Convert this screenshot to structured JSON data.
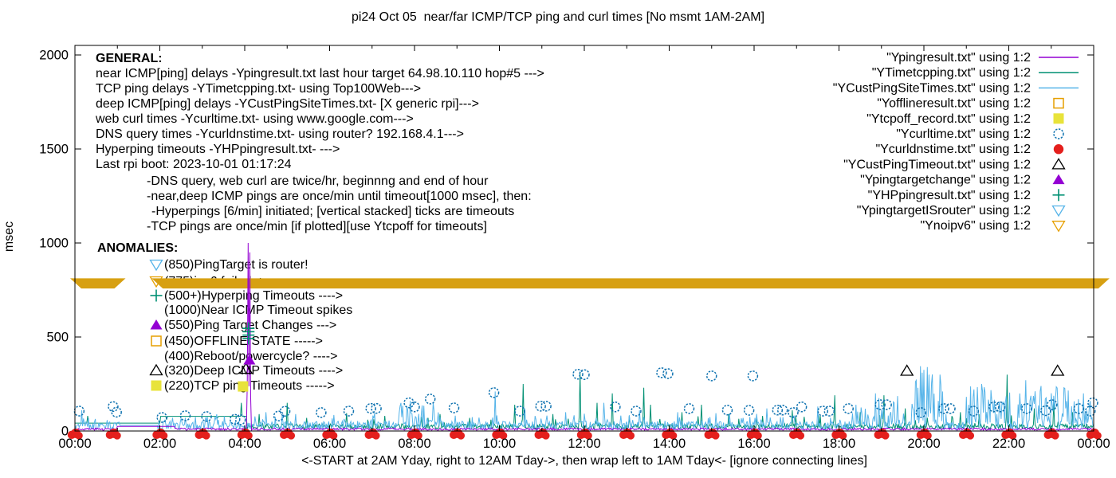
{
  "title": "pi24 Oct 05  near/far ICMP/TCP ping and curl times [No msmt 1AM-2AM]",
  "ylabel": "msec",
  "xlabel": "<-START at 2AM Yday, right to 12AM Tday->, then wrap left to 1AM Tday<- [ignore connecting lines]",
  "general": {
    "heading": "GENERAL:",
    "lines": [
      "near ICMP[ping] delays -Ypingresult.txt last hour target 64.98.10.110 hop#5 --->",
      "TCP ping delays -YTimetcpping.txt- using Top100Web--->",
      "deep ICMP[ping] delays -YCustPingSiteTimes.txt- [X generic rpi]--->",
      "web curl times -Ycurltime.txt- using www.google.com--->",
      "DNS query times -Ycurldnstime.txt- using router? 192.168.4.1--->",
      "Hyperping timeouts -YHPpingresult.txt- --->",
      "Last rpi boot: 2023-10-01 01:17:24"
    ],
    "notes": [
      "-DNS query, web curl are twice/hr, beginnng and end of hour",
      "-near,deep ICMP pings are once/min until timeout[1000 msec], then:",
      "-Hyperpings [6/min] initiated; [vertical stacked] ticks are timeouts",
      "-TCP pings are once/min [if plotted][use Ytcpoff for timeouts]"
    ]
  },
  "anomalies": {
    "heading": "ANOMALIES:",
    "items": [
      {
        "marker": "triangle-down-open",
        "color": "#56b4e9",
        "text": "(850)PingTarget is router!"
      },
      {
        "marker": "triangle-down-open",
        "color": "#e69f00",
        "text": "(775)ipv6 failed ->"
      },
      {
        "marker": "plus",
        "color": "#009073",
        "text": "(500+)Hyperping Timeouts ---->"
      },
      {
        "marker": "none",
        "color": "",
        "text": "(1000)Near ICMP Timeout spikes"
      },
      {
        "marker": "triangle-up-filled",
        "color": "#9400d3",
        "text": "(550)Ping Target Changes --->"
      },
      {
        "marker": "square-open",
        "color": "#e69f00",
        "text": "(450)OFFLINE STATE ----->"
      },
      {
        "marker": "none",
        "color": "",
        "text": "(400)Reboot/powercycle? ---->"
      },
      {
        "marker": "triangle-up-open",
        "color": "#000000",
        "text": "(320)Deep ICMP Timeouts ---->"
      },
      {
        "marker": "square-filled",
        "color": "#e8e33a",
        "text": "(220)TCP ping Timeouts ----->"
      }
    ]
  },
  "legend": {
    "entries": [
      {
        "label": "\"Ypingresult.txt\" using 1:2",
        "marker": "line",
        "color": "#9400d3"
      },
      {
        "label": "\"YTimetcpping.txt\" using 1:2",
        "marker": "line",
        "color": "#009073"
      },
      {
        "label": "\"YCustPingSiteTimes.txt\" using 1:2",
        "marker": "line",
        "color": "#56b4e9"
      },
      {
        "label": "\"Yofflineresult.txt\" using 1:2",
        "marker": "square-open",
        "color": "#e69f00"
      },
      {
        "label": "\"Ytcpoff_record.txt\" using 1:2",
        "marker": "square-filled",
        "color": "#e8e33a"
      },
      {
        "label": "\"Ycurltime.txt\" using 1:2",
        "marker": "circle-open",
        "color": "#0e72b0"
      },
      {
        "label": "\"Ycurldnstime.txt\" using 1:2",
        "marker": "circle-filled",
        "color": "#e41f1c"
      },
      {
        "label": "\"YCustPingTimeout.txt\" using 1:2",
        "marker": "triangle-up-open",
        "color": "#000000"
      },
      {
        "label": "\"Ypingtargetchange\" using 1:2",
        "marker": "triangle-up-filled",
        "color": "#9400d3"
      },
      {
        "label": "\"YHPpingresult.txt\" using 1:2",
        "marker": "plus",
        "color": "#009073"
      },
      {
        "label": "\"YpingtargetISrouter\" using 1:2",
        "marker": "triangle-down-open",
        "color": "#56b4e9"
      },
      {
        "label": "\"Ynoipv6\" using 1:2",
        "marker": "triangle-down-open",
        "color": "#e69f00"
      }
    ]
  },
  "chart_data": {
    "type": "line+scatter",
    "x_unit": "hours",
    "xlim": [
      0,
      24
    ],
    "ylim": [
      0,
      2000
    ],
    "y_ticks": [
      0,
      500,
      1000,
      1500,
      2000
    ],
    "x_major_ticks_hours": [
      0,
      2,
      4,
      6,
      8,
      10,
      12,
      14,
      16,
      18,
      20,
      22,
      24
    ],
    "x_tick_labels": [
      "00:00",
      "02:00",
      "04:00",
      "06:00",
      "08:00",
      "10:00",
      "12:00",
      "14:00",
      "16:00",
      "18:00",
      "20:00",
      "22:00",
      "00:00"
    ],
    "no_msmt_gap_hours": [
      1.05,
      1.95
    ],
    "band": {
      "name": "Ynoipv6",
      "color": "#d7a012",
      "y_msec": 785,
      "half_height_msec": 27,
      "segments_hours": [
        [
          0,
          1.08
        ],
        [
          1.92,
          24.26
        ]
      ]
    },
    "series": [
      {
        "name": "Ypingresult.txt",
        "type": "line",
        "color": "#9400d3",
        "baseline_msec": [
          4,
          16
        ],
        "gap_value_msec": 24,
        "flat_segments": [
          {
            "hours": [
              1.0,
              2.35
            ],
            "v_msec": 24
          }
        ],
        "spike_prob": 0,
        "spike_gain": 0,
        "spikes": [
          [
            4.07,
            1000
          ],
          [
            4.12,
            950
          ]
        ]
      },
      {
        "name": "YTimetcpping.txt",
        "type": "line",
        "color": "#009073",
        "baseline_msec": [
          10,
          38
        ],
        "gap_value_msec": 42,
        "flat_segments": [
          {
            "hours": [
              0,
              2.0
            ],
            "v_msec": 42
          },
          {
            "hours": [
              2.0,
              4.05
            ],
            "v_msec": 78
          }
        ],
        "spike_prob": 0.05,
        "spike_gain": 55,
        "spikes": [
          [
            0.3,
            80
          ],
          [
            2.15,
            60
          ],
          [
            3.35,
            70
          ],
          [
            3.92,
            150
          ],
          [
            4.35,
            90
          ],
          [
            5.0,
            150
          ],
          [
            5.45,
            70
          ],
          [
            6.4,
            95
          ],
          [
            6.9,
            60
          ],
          [
            7.3,
            80
          ],
          [
            8.6,
            90
          ],
          [
            9.3,
            70
          ],
          [
            9.8,
            60
          ],
          [
            10.35,
            140
          ],
          [
            10.55,
            250
          ],
          [
            11.25,
            90
          ],
          [
            11.9,
            310
          ],
          [
            12.3,
            150
          ],
          [
            12.65,
            200
          ],
          [
            13.05,
            80
          ],
          [
            13.4,
            230
          ],
          [
            13.55,
            140
          ],
          [
            14.3,
            100
          ],
          [
            14.75,
            140
          ],
          [
            15.4,
            90
          ],
          [
            16.2,
            80
          ],
          [
            16.9,
            110
          ],
          [
            17.55,
            80
          ],
          [
            17.9,
            190
          ],
          [
            18.5,
            100
          ],
          [
            19.05,
            190
          ],
          [
            19.55,
            120
          ],
          [
            20.85,
            100
          ],
          [
            21.3,
            90
          ],
          [
            21.95,
            300
          ],
          [
            22.6,
            120
          ],
          [
            23.05,
            150
          ],
          [
            23.5,
            100
          ]
        ]
      },
      {
        "name": "YCustPingSiteTimes.txt",
        "type": "line",
        "color": "#56b4e9",
        "baseline_msec": [
          6,
          52
        ],
        "gap_value_msec": 30,
        "flat_segments": [],
        "spike_prob": 0.16,
        "spike_gain": 60,
        "spikes": [
          [
            0.15,
            110
          ],
          [
            2.3,
            70
          ],
          [
            3.3,
            75
          ],
          [
            4.5,
            100
          ],
          [
            5.2,
            90
          ],
          [
            6.1,
            85
          ],
          [
            7.05,
            95
          ],
          [
            7.9,
            160
          ],
          [
            8.45,
            150
          ],
          [
            9.9,
            210
          ],
          [
            10.6,
            120
          ],
          [
            11.55,
            100
          ],
          [
            12.45,
            150
          ],
          [
            13.3,
            110
          ],
          [
            14.2,
            100
          ],
          [
            15.1,
            95
          ],
          [
            16.3,
            120
          ],
          [
            17.5,
            130
          ],
          [
            18.4,
            140
          ],
          [
            18.85,
            200
          ],
          [
            19.3,
            150
          ],
          [
            19.86,
            230
          ],
          [
            19.92,
            345
          ],
          [
            19.97,
            310
          ],
          [
            20.07,
            340
          ],
          [
            20.12,
            300
          ],
          [
            20.17,
            255
          ],
          [
            20.38,
            300
          ],
          [
            20.43,
            210
          ],
          [
            21.05,
            140
          ],
          [
            21.35,
            250
          ],
          [
            21.6,
            160
          ],
          [
            22.4,
            270
          ],
          [
            23.3,
            230
          ],
          [
            23.75,
            200
          ]
        ],
        "bursts": [
          {
            "hours": [
              19.72,
              20.58
            ],
            "max_msec": 350
          },
          {
            "hours": [
              21.0,
              23.95
            ],
            "max_msec": 230
          },
          {
            "hours": [
              7.6,
              8.6
            ],
            "max_msec": 130
          },
          {
            "hours": [
              18.3,
              19.4
            ],
            "max_msec": 170
          }
        ]
      },
      {
        "name": "Yofflineresult.txt",
        "type": "scatter",
        "marker": "square-open",
        "color": "#e69f00",
        "points": []
      },
      {
        "name": "Ytcpoff_record.txt",
        "type": "scatter",
        "marker": "square-filled",
        "color": "#e8e33a",
        "points": [
          [
            3.96,
            237
          ]
        ]
      },
      {
        "name": "Ycurltime.txt",
        "type": "scatter",
        "marker": "circle-open",
        "color": "#0e72b0",
        "points": [
          [
            0.1,
            106
          ],
          [
            0.9,
            130
          ],
          [
            0.98,
            100
          ],
          [
            2.05,
            72
          ],
          [
            2.6,
            81
          ],
          [
            3.1,
            77
          ],
          [
            3.77,
            62
          ],
          [
            3.9,
            60
          ],
          [
            4.8,
            80
          ],
          [
            4.95,
            105
          ],
          [
            5.8,
            98
          ],
          [
            6.45,
            106
          ],
          [
            6.97,
            120
          ],
          [
            7.1,
            120
          ],
          [
            7.87,
            150
          ],
          [
            8.0,
            128
          ],
          [
            8.37,
            170
          ],
          [
            8.93,
            123
          ],
          [
            9.87,
            204
          ],
          [
            10.48,
            106
          ],
          [
            10.97,
            132
          ],
          [
            11.1,
            132
          ],
          [
            11.85,
            302
          ],
          [
            12.0,
            300
          ],
          [
            12.73,
            128
          ],
          [
            13.22,
            106
          ],
          [
            13.82,
            310
          ],
          [
            13.97,
            305
          ],
          [
            14.47,
            119
          ],
          [
            15.0,
            293
          ],
          [
            15.37,
            111
          ],
          [
            15.88,
            110
          ],
          [
            15.97,
            293
          ],
          [
            16.55,
            111
          ],
          [
            16.67,
            111
          ],
          [
            16.92,
            98
          ],
          [
            17.12,
            128
          ],
          [
            17.62,
            106
          ],
          [
            17.77,
            106
          ],
          [
            18.22,
            119
          ],
          [
            18.97,
            140
          ],
          [
            19.12,
            140
          ],
          [
            19.93,
            98
          ],
          [
            20.47,
            119
          ],
          [
            20.62,
            119
          ],
          [
            21.17,
            106
          ],
          [
            21.65,
            128
          ],
          [
            21.8,
            128
          ],
          [
            22.42,
            119
          ],
          [
            22.87,
            108
          ],
          [
            23.02,
            140
          ],
          [
            23.65,
            119
          ],
          [
            23.92,
            106
          ],
          [
            23.98,
            150
          ]
        ]
      },
      {
        "name": "Ycurldnstime.txt",
        "type": "scatter",
        "marker": "blob",
        "color": "#e41f1c",
        "points": [
          [
            0,
            5
          ],
          [
            0.9,
            5
          ],
          [
            2,
            5
          ],
          [
            3,
            5
          ],
          [
            4,
            5
          ],
          [
            5,
            5
          ],
          [
            6,
            5
          ],
          [
            7,
            5
          ],
          [
            8,
            5
          ],
          [
            9,
            5
          ],
          [
            10,
            5
          ],
          [
            11,
            5
          ],
          [
            12,
            5
          ],
          [
            13,
            5
          ],
          [
            14,
            5
          ],
          [
            15,
            5
          ],
          [
            16,
            5
          ],
          [
            17,
            5
          ],
          [
            18,
            5
          ],
          [
            19,
            5
          ],
          [
            20,
            5
          ],
          [
            21,
            5
          ],
          [
            22,
            5
          ],
          [
            23,
            5
          ],
          [
            24,
            5
          ]
        ]
      },
      {
        "name": "YCustPingTimeout.txt",
        "type": "scatter",
        "marker": "triangle-up-open",
        "color": "#000000",
        "points": [
          [
            4.03,
            330
          ],
          [
            19.6,
            320
          ],
          [
            23.15,
            320
          ]
        ]
      },
      {
        "name": "Ypingtargetchange",
        "type": "scatter",
        "marker": "triangle-up-filled",
        "color": "#9400d3",
        "points": [
          [
            4.11,
            377
          ]
        ]
      },
      {
        "name": "YHPpingresult.txt",
        "type": "scatter",
        "marker": "plus",
        "color": "#009073",
        "points": [
          [
            4.09,
            492
          ],
          [
            4.09,
            510
          ],
          [
            4.09,
            528
          ],
          [
            4.09,
            546
          ]
        ]
      },
      {
        "name": "YpingtargetISrouter",
        "type": "scatter",
        "marker": "triangle-down-open",
        "color": "#56b4e9",
        "points": []
      },
      {
        "name": "Ynoipv6",
        "type": "band",
        "marker": "triangle-down-open",
        "color": "#e69f00",
        "points": []
      }
    ]
  }
}
